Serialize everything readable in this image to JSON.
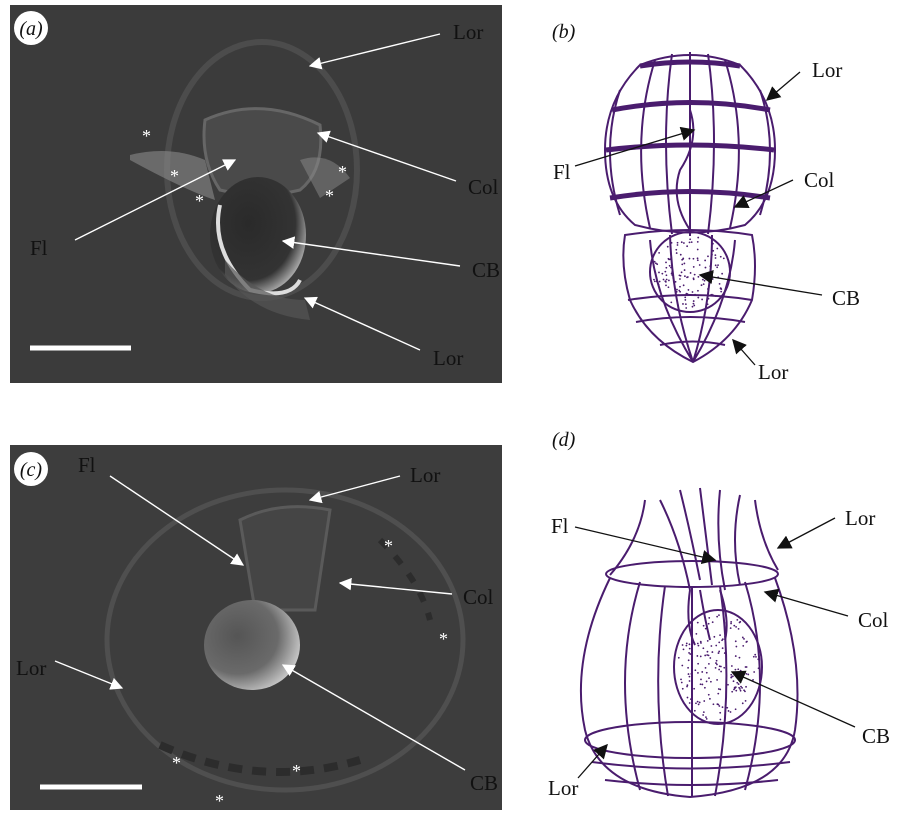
{
  "panels": [
    {
      "label": "(a)",
      "annotations": [
        "Lor",
        "Col",
        "Fl",
        "CB",
        "Lor"
      ],
      "asterisks": [
        "*",
        "*",
        "*",
        "*",
        "*"
      ]
    },
    {
      "label": "(b)",
      "annotations": [
        "Lor",
        "Fl",
        "Col",
        "CB",
        "Lor"
      ]
    },
    {
      "label": "(c)",
      "annotations": [
        "Fl",
        "Lor",
        "Col",
        "Lor",
        "CB"
      ],
      "asterisks": [
        "*",
        "*",
        "*",
        "*",
        "*"
      ]
    },
    {
      "label": "(d)",
      "annotations": [
        "Fl",
        "Lor",
        "Col",
        "CB",
        "Lor"
      ]
    }
  ]
}
